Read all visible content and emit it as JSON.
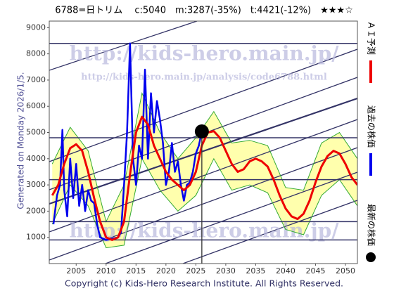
{
  "chart_data": {
    "type": "line",
    "title": "6788=日トリム　 c:5040　m:3287(-35%)　t:4421(-12%)　★★★☆",
    "side_note": "Generated on Monday 2026/1/5.",
    "copyright": "Copyright (c) Kids-Hero Research Institute. All Rights Reserved.",
    "watermarks": [
      "http://kids-hero.main.jp/",
      "http://kids-hero.main.jp/analysis/code6788.html"
    ],
    "xlim": [
      2000.5,
      2052
    ],
    "ylim": [
      0,
      9250
    ],
    "xticks": [
      2005,
      2010,
      2015,
      2020,
      2025,
      2030,
      2035,
      2040,
      2045,
      2050
    ],
    "yticks": [
      1000,
      2000,
      3000,
      4000,
      5000,
      6000,
      7000,
      8000,
      9000
    ],
    "levels": [
      8400,
      4800,
      3200,
      1600,
      900
    ],
    "series": [
      {
        "name": "過去の株価",
        "color": "#0000ee",
        "x": [
          2001.2,
          2001.8,
          2002.3,
          2002.7,
          2003,
          2003.5,
          2004,
          2004.5,
          2005,
          2005.5,
          2006,
          2006.5,
          2007,
          2007.5,
          2008,
          2008.5,
          2009,
          2010,
          2011,
          2012,
          2012.5,
          2013,
          2013.5,
          2014,
          2014.5,
          2015,
          2015.5,
          2016,
          2016.5,
          2017,
          2017.5,
          2018,
          2018.5,
          2019,
          2019.5,
          2020,
          2020.5,
          2021,
          2021.5,
          2022,
          2022.5,
          2023,
          2023.5,
          2024,
          2024.5,
          2025,
          2025.5,
          2026
        ],
        "values": [
          1500,
          2600,
          3000,
          5100,
          2800,
          1800,
          4000,
          2500,
          3800,
          2200,
          3000,
          2000,
          2800,
          2400,
          2300,
          1500,
          1000,
          900,
          950,
          1000,
          1200,
          3000,
          5000,
          8400,
          4000,
          3000,
          4500,
          4000,
          7400,
          4000,
          6500,
          5000,
          6200,
          5500,
          4600,
          3000,
          3500,
          4600,
          3500,
          3900,
          3000,
          2400,
          3000,
          3100,
          3500,
          4200,
          4500,
          5040
        ]
      },
      {
        "name": "ＡＩ予測",
        "color": "#ee0000",
        "x": [
          2001,
          2002,
          2003,
          2004,
          2005,
          2006,
          2007,
          2008,
          2009,
          2010,
          2011,
          2012,
          2013,
          2014,
          2015,
          2016,
          2017,
          2018,
          2019,
          2020,
          2021,
          2022,
          2023,
          2024,
          2025,
          2026,
          2027,
          2028,
          2029,
          2030,
          2031,
          2032,
          2033,
          2034,
          2035,
          2036,
          2037,
          2038,
          2039,
          2040,
          2041,
          2042,
          2043,
          2044,
          2045,
          2046,
          2047,
          2048,
          2049,
          2050,
          2051,
          2052
        ],
        "values": [
          2600,
          3000,
          3800,
          4400,
          4550,
          4300,
          3500,
          2500,
          1600,
          1000,
          900,
          1000,
          1600,
          3400,
          5000,
          5600,
          5300,
          4500,
          4000,
          3500,
          3200,
          3000,
          2800,
          3000,
          3500,
          4500,
          5000,
          5050,
          4800,
          4300,
          3800,
          3500,
          3600,
          3900,
          4000,
          3900,
          3700,
          3200,
          2600,
          2100,
          1800,
          1700,
          1900,
          2400,
          3100,
          3700,
          4100,
          4300,
          4200,
          3800,
          3300,
          3000
        ]
      }
    ],
    "band": {
      "color": "#33aa33",
      "fill": "#ffff99",
      "x": [
        2001,
        2004,
        2007,
        2010,
        2013,
        2016,
        2019,
        2022,
        2025,
        2028,
        2031,
        2034,
        2037,
        2040,
        2043,
        2046,
        2049,
        2052
      ],
      "upper": [
        3800,
        5200,
        4300,
        1600,
        3000,
        6500,
        5000,
        4000,
        4800,
        5800,
        4600,
        4700,
        4500,
        2900,
        2800,
        4600,
        5000,
        4000
      ],
      "lower": [
        1500,
        3000,
        2200,
        600,
        700,
        4000,
        2800,
        2000,
        2600,
        4000,
        2800,
        3000,
        2700,
        1300,
        1100,
        2600,
        3200,
        2200
      ]
    },
    "latest": {
      "name": "最新の株価",
      "x": 2026,
      "value": 5040,
      "color": "#000000"
    }
  }
}
